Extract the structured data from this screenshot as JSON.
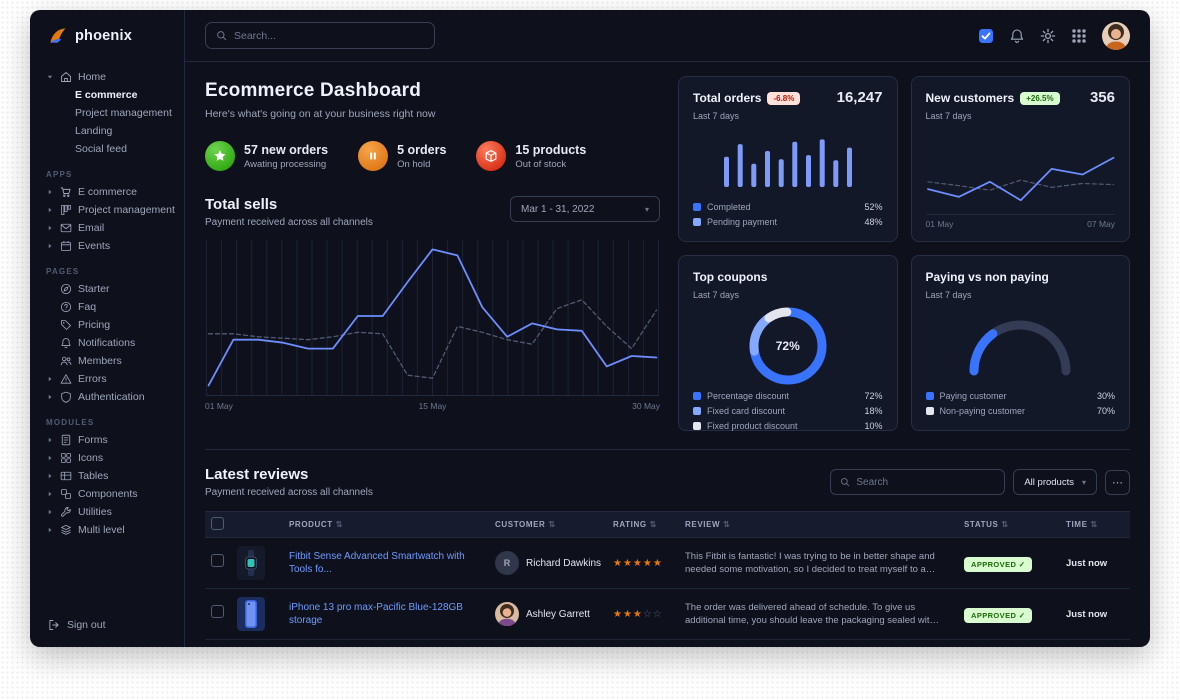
{
  "brand": {
    "name": "phoenix"
  },
  "topbar": {
    "search_placeholder": "Search..."
  },
  "sidebar": {
    "signout_label": "Sign out",
    "sections": [
      {
        "label": "",
        "items": [
          {
            "label": "Home",
            "icon": "home",
            "caret": "down",
            "children": [
              {
                "label": "E commerce",
                "active": true
              },
              {
                "label": "Project management",
                "active": false
              },
              {
                "label": "Landing",
                "active": false
              },
              {
                "label": "Social feed",
                "active": false
              }
            ]
          }
        ]
      },
      {
        "label": "APPS",
        "items": [
          {
            "label": "E commerce",
            "icon": "cart",
            "caret": "right"
          },
          {
            "label": "Project management",
            "icon": "kanban",
            "caret": "right"
          },
          {
            "label": "Email",
            "icon": "envelope",
            "caret": "right"
          },
          {
            "label": "Events",
            "icon": "calendar",
            "caret": "right"
          }
        ]
      },
      {
        "label": "PAGES",
        "items": [
          {
            "label": "Starter",
            "icon": "compass",
            "caret": ""
          },
          {
            "label": "Faq",
            "icon": "question",
            "caret": ""
          },
          {
            "label": "Pricing",
            "icon": "tag",
            "caret": ""
          },
          {
            "label": "Notifications",
            "icon": "bell",
            "caret": ""
          },
          {
            "label": "Members",
            "icon": "users",
            "caret": ""
          },
          {
            "label": "Errors",
            "icon": "warning",
            "caret": "right"
          },
          {
            "label": "Authentication",
            "icon": "shield",
            "caret": "right"
          }
        ]
      },
      {
        "label": "MODULES",
        "items": [
          {
            "label": "Forms",
            "icon": "forms",
            "caret": "right"
          },
          {
            "label": "Icons",
            "icon": "icons",
            "caret": "right"
          },
          {
            "label": "Tables",
            "icon": "table",
            "caret": "right"
          },
          {
            "label": "Components",
            "icon": "components",
            "caret": "right"
          },
          {
            "label": "Utilities",
            "icon": "wrench",
            "caret": "right"
          },
          {
            "label": "Multi level",
            "icon": "layers",
            "caret": "right"
          }
        ]
      }
    ]
  },
  "header": {
    "title": "Ecommerce Dashboard",
    "subtitle": "Here's what's going on at your business right now"
  },
  "stats": [
    {
      "value": "57 new orders",
      "caption": "Awating processing",
      "icon": "star",
      "color": "#1e9c01",
      "color_light": "#6fd34f"
    },
    {
      "value": "5 orders",
      "caption": "On hold",
      "icon": "pause",
      "color": "#d96a06",
      "color_light": "#f5a54a"
    },
    {
      "value": "15 products",
      "caption": "Out of stock",
      "icon": "box",
      "color": "#cc1b00",
      "color_light": "#ff7a5c"
    }
  ],
  "total_sells": {
    "title": "Total sells",
    "subtitle": "Payment received across all channels",
    "date_range": "Mar 1 - 31, 2022",
    "x_labels": [
      "01 May",
      "15 May",
      "30 May"
    ],
    "chart": {
      "type": "line",
      "primary_color": "#6e8eff",
      "secondary_color": "#525b75",
      "primary": [
        5,
        36,
        36,
        34,
        30,
        30,
        52,
        52,
        75,
        97,
        93,
        58,
        38,
        47,
        43,
        42,
        18,
        25,
        24
      ],
      "secondary": [
        40,
        40,
        38,
        37,
        36,
        38,
        41,
        40,
        12,
        10,
        45,
        41,
        36,
        33,
        57,
        63,
        45,
        30,
        56
      ]
    }
  },
  "cards": {
    "total_orders": {
      "title": "Total orders",
      "badge": "-6.8%",
      "period": "Last 7 days",
      "value": "16,247",
      "chart": {
        "type": "bar",
        "color": "#7e9bfa",
        "values": [
          52,
          74,
          40,
          62,
          48,
          78,
          55,
          82,
          46,
          68
        ]
      },
      "legend": [
        {
          "label": "Completed",
          "value": "52%",
          "color": "#3874ff"
        },
        {
          "label": "Pending payment",
          "value": "48%",
          "color": "#85a9ff"
        }
      ]
    },
    "new_customers": {
      "title": "New customers",
      "badge": "+26.5%",
      "period": "Last 7 days",
      "value": "356",
      "x_labels": [
        "01 May",
        "07 May"
      ],
      "chart": {
        "type": "line",
        "primary_color": "#6e8eff",
        "secondary_color": "#525b75",
        "primary": [
          32,
          18,
          45,
          12,
          68,
          58,
          88
        ],
        "secondary": [
          45,
          38,
          30,
          48,
          35,
          42,
          40
        ]
      }
    },
    "top_coupons": {
      "title": "Top coupons",
      "period": "Last 7 days",
      "center_value": "72%",
      "chart": {
        "type": "donut"
      },
      "legend": [
        {
          "label": "Percentage discount",
          "value": "72%",
          "pct": 72,
          "color": "#3874ff"
        },
        {
          "label": "Fixed card discount",
          "value": "18%",
          "pct": 18,
          "color": "#85a9ff"
        },
        {
          "label": "Fixed product discount",
          "value": "10%",
          "pct": 10,
          "color": "#e3e6ed"
        }
      ]
    },
    "paying": {
      "title": "Paying vs non paying",
      "period": "Last 7 days",
      "chart": {
        "type": "gauge",
        "value_pct": 30
      },
      "legend": [
        {
          "label": "Paying customer",
          "value": "30%",
          "pct": 30,
          "color": "#3874ff"
        },
        {
          "label": "Non-paying customer",
          "value": "70%",
          "pct": 70,
          "color": "#e3e6ed"
        }
      ]
    }
  },
  "reviews": {
    "title": "Latest reviews",
    "subtitle": "Payment received across all channels",
    "search_placeholder": "Search",
    "filter_label": "All products",
    "more_label": "⋯",
    "columns": [
      "PRODUCT",
      "CUSTOMER",
      "RATING",
      "REVIEW",
      "STATUS",
      "TIME"
    ],
    "rows": [
      {
        "product": "Fitbit Sense Advanced Smartwatch with Tools fo...",
        "product_image": "fitbit",
        "customer": "Richard Dawkins",
        "avatar": {
          "type": "initial",
          "text": "R"
        },
        "rating": 5,
        "review": "This Fitbit is fantastic! I was trying to be in better shape and needed some motivation, so I decided to treat myself to a new Fitbit.",
        "status": "APPROVED",
        "time": "Just now"
      },
      {
        "product": "iPhone 13 pro max-Pacific Blue-128GB storage",
        "product_image": "iphone",
        "customer": "Ashley Garrett",
        "avatar": {
          "type": "photo"
        },
        "rating": 3,
        "review": "The order was delivered ahead of schedule. To give us additional time, you should leave the packaging sealed with plastic.",
        "status": "APPROVED",
        "time": "Just now"
      }
    ]
  }
}
